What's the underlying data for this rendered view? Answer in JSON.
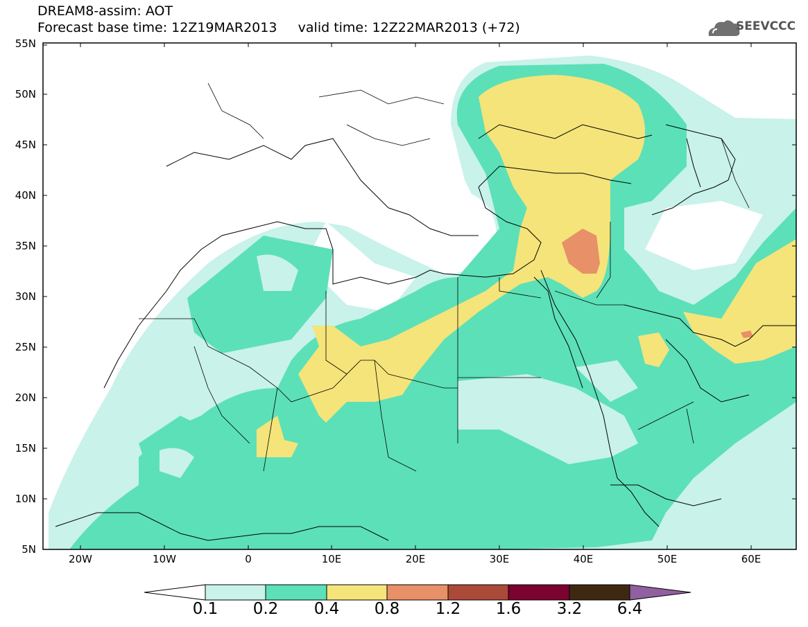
{
  "header": {
    "line1": "DREAM8-assim: AOT",
    "line2": "Forecast base time: 12Z19MAR2013     valid time: 12Z22MAR2013 (+72)"
  },
  "logo": {
    "text": "SEEVCCC",
    "icon": "cloud-icon"
  },
  "map": {
    "lat_labels": [
      "55N",
      "50N",
      "45N",
      "40N",
      "35N",
      "30N",
      "25N",
      "20N",
      "15N",
      "10N",
      "5N"
    ],
    "lon_labels": [
      "20W",
      "10W",
      "0",
      "10E",
      "20E",
      "30E",
      "40E",
      "50E",
      "60E"
    ],
    "lon_range": [
      -25,
      65
    ],
    "lat_range": [
      5,
      55
    ]
  },
  "colorbar": {
    "labels": [
      "0.1",
      "0.2",
      "0.4",
      "0.8",
      "1.2",
      "1.6",
      "3.2",
      "6.4"
    ],
    "colors": [
      "#ffffff",
      "#c8f2ea",
      "#5ce0b8",
      "#f5e47a",
      "#e89068",
      "#ac4a3a",
      "#7c0230",
      "#3e2812",
      "#9060a0"
    ]
  },
  "palette": {
    "lt": "#c8f2ea",
    "gr": "#5ce0b8",
    "yl": "#f5e47a",
    "or": "#e89068"
  }
}
